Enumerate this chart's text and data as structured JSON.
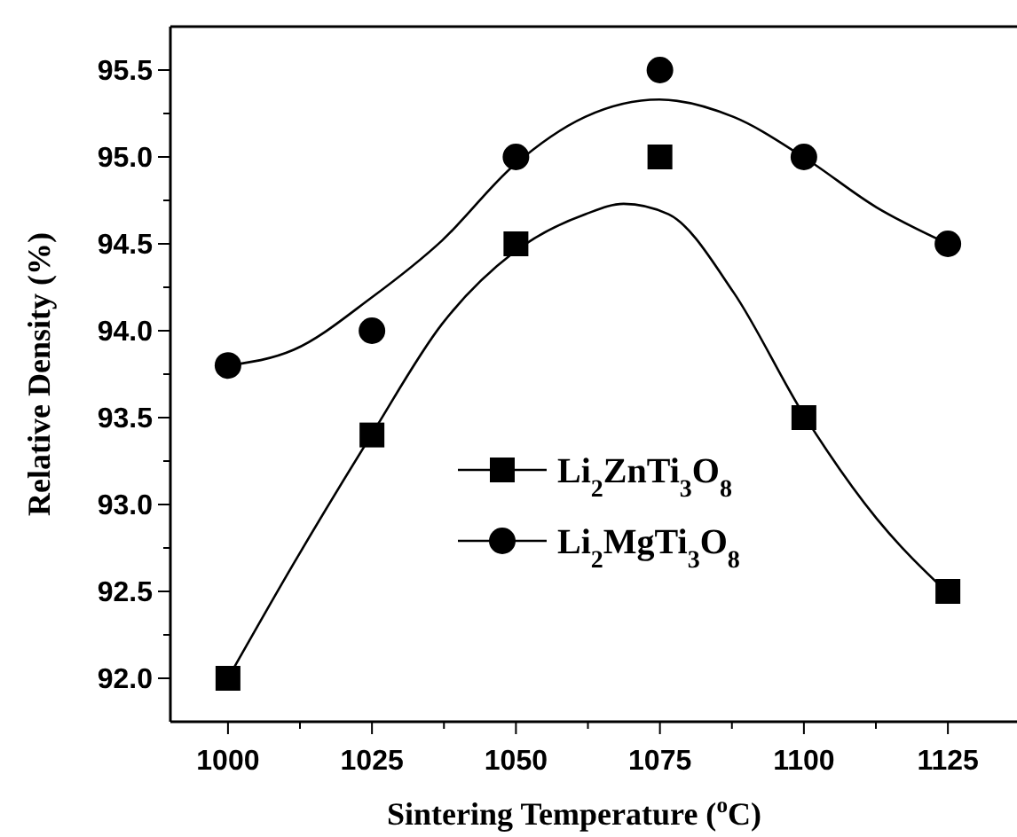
{
  "chart_data": {
    "type": "scatter",
    "xlabel": "Sintering Temperature ($^{o}$C)",
    "ylabel": "Relative Density (%)",
    "xlim": [
      990,
      1137
    ],
    "ylim": [
      91.75,
      95.75
    ],
    "xticks": [
      1000,
      {
        "value": 1012.5,
        "label": null
      },
      1025,
      {
        "value": 1037.5,
        "label": null
      },
      1050,
      {
        "value": 1062.5,
        "label": null
      },
      1075,
      {
        "value": 1087.5,
        "label": null
      },
      1100,
      {
        "value": 1112.5,
        "label": null
      },
      1125
    ],
    "yticks": [
      {
        "value": 92,
        "label": "92.0"
      },
      {
        "value": 92.25,
        "label": null
      },
      {
        "value": 92.5,
        "label": "92.5"
      },
      {
        "value": 92.75,
        "label": null
      },
      {
        "value": 93,
        "label": "93.0"
      },
      {
        "value": 93.25,
        "label": null
      },
      {
        "value": 93.5,
        "label": "93.5"
      },
      {
        "value": 93.75,
        "label": null
      },
      {
        "value": 94,
        "label": "94.0"
      },
      {
        "value": 94.25,
        "label": null
      },
      {
        "value": 94.5,
        "label": "94.5"
      },
      {
        "value": 94.75,
        "label": null
      },
      {
        "value": 95,
        "label": "95.0"
      },
      {
        "value": 95.25,
        "label": null
      },
      {
        "value": 95.5,
        "label": "95.5"
      }
    ],
    "legend": "center",
    "grid": false,
    "series": [
      {
        "name": "Li$_{2}$ZnTi$_{3}$O$_{8}$",
        "color": "#000000",
        "marker": "square",
        "x": [
          1000,
          1025,
          1050,
          1075,
          1100,
          1125
        ],
        "values": [
          92.0,
          93.4,
          94.5,
          95.0,
          93.5,
          92.5
        ]
      },
      {
        "name": "Li$_{2}$MgTi$_{3}$O$_{8}$",
        "color": "#000000",
        "marker": "circle",
        "x": [
          1000,
          1025,
          1050,
          1075,
          1100,
          1125
        ],
        "values": [
          93.8,
          94.0,
          95.0,
          95.5,
          95.0,
          94.5
        ]
      },
      {
        "type": "line",
        "color": "#000000",
        "marker": "none",
        "x": [
          1000,
          1011.4,
          1024.9,
          1037.2,
          1049.6,
          1062,
          1068.7,
          1076.5,
          1087.8,
          1099.9,
          1112.6,
          1125
        ],
        "values": [
          92.0,
          92.66,
          93.4,
          94.04,
          94.45,
          94.67,
          94.73,
          94.67,
          94.22,
          93.52,
          92.92,
          92.49
        ]
      },
      {
        "type": "line",
        "color": "#000000",
        "marker": "none",
        "x": [
          1000,
          1011.4,
          1024.9,
          1037.2,
          1049.6,
          1062,
          1074.9,
          1087.8,
          1099.9,
          1112.6,
          1125
        ],
        "values": [
          93.8,
          93.89,
          94.19,
          94.52,
          94.95,
          95.23,
          95.33,
          95.23,
          95.0,
          94.71,
          94.5
        ]
      }
    ]
  }
}
